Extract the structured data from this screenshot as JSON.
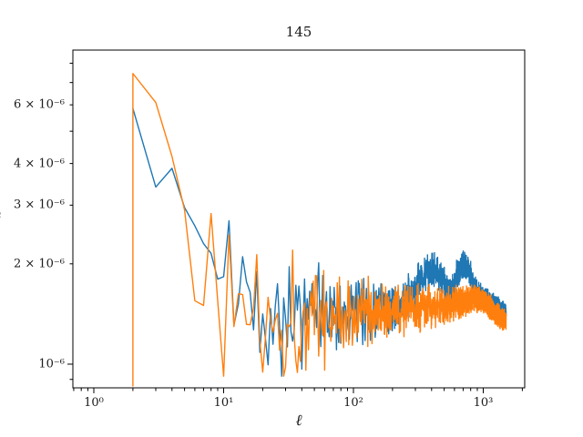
{
  "figure": {
    "title": "145",
    "xlabel": "ℓ",
    "y_axis_label_fragment": "ℓ",
    "background_color": "#ffffff",
    "spine_color": "#000000",
    "text_color": "#1a1a1a"
  },
  "chart_data": {
    "type": "line",
    "title": "145",
    "xlabel": "ℓ",
    "ylabel": "",
    "xscale": "log",
    "yscale": "log",
    "xlim": [
      0.6895,
      2086
    ],
    "ylim": [
      8.49e-07,
      8.76e-06
    ],
    "grid": false,
    "legend": null,
    "x_ticks": {
      "major": [
        {
          "v": 1,
          "label": "10⁰"
        },
        {
          "v": 10,
          "label": "10¹"
        },
        {
          "v": 100,
          "label": "10²"
        },
        {
          "v": 1000,
          "label": "10³"
        }
      ]
    },
    "y_ticks": {
      "major": [
        {
          "v": 1e-06,
          "label": "10⁻⁶"
        }
      ],
      "minor_labeled": [
        {
          "v": 2e-06,
          "label": "2 × 10⁻⁶"
        },
        {
          "v": 3e-06,
          "label": "3 × 10⁻⁶"
        },
        {
          "v": 4e-06,
          "label": "4 × 10⁻⁶"
        },
        {
          "v": 6e-06,
          "label": "6 × 10⁻⁶"
        }
      ]
    },
    "series": [
      {
        "name": "series-blue",
        "color": "#1f77b4",
        "linewidth": 1.4,
        "head": [
          [
            2,
            5.85e-06
          ],
          [
            3,
            3.4e-06
          ],
          [
            4,
            3.87e-06
          ],
          [
            5,
            2.95e-06
          ],
          [
            6,
            2.6e-06
          ],
          [
            7,
            2.3e-06
          ],
          [
            8,
            2.15e-06
          ],
          [
            9,
            1.8e-06
          ]
        ],
        "backbone": [
          [
            10,
            1.75e-06
          ],
          [
            14,
            1.62e-06
          ],
          [
            20,
            1.52e-06
          ],
          [
            30,
            1.45e-06
          ],
          [
            60,
            1.42e-06
          ],
          [
            100,
            1.44e-06
          ],
          [
            160,
            1.47e-06
          ],
          [
            220,
            1.5e-06
          ],
          [
            280,
            1.6e-06
          ],
          [
            330,
            1.8e-06
          ],
          [
            380,
            1.92e-06
          ],
          [
            430,
            1.9e-06
          ],
          [
            480,
            1.8e-06
          ],
          [
            530,
            1.65e-06
          ],
          [
            560,
            1.6e-06
          ],
          [
            620,
            1.85e-06
          ],
          [
            680,
            1.97e-06
          ],
          [
            740,
            1.97e-06
          ],
          [
            800,
            1.85e-06
          ],
          [
            860,
            1.7e-06
          ],
          [
            920,
            1.62e-06
          ],
          [
            1000,
            1.58e-06
          ],
          [
            1100,
            1.55e-06
          ],
          [
            1250,
            1.5e-06
          ],
          [
            1400,
            1.45e-06
          ],
          [
            1500,
            1.43e-06
          ]
        ],
        "noise": {
          "start": 10,
          "end": 1500,
          "k": 1.25,
          "seed": 42,
          "min": 9.2e-07,
          "max": 3e-06
        }
      },
      {
        "name": "series-orange",
        "color": "#ff7f0e",
        "linewidth": 1.4,
        "head": [
          [
            2,
            8.6e-07
          ],
          [
            2,
            7.45e-06
          ],
          [
            3,
            6.1e-06
          ],
          [
            4,
            4.2e-06
          ],
          [
            5,
            2.9e-06
          ],
          [
            6,
            1.55e-06
          ],
          [
            7,
            1.5e-06
          ],
          [
            8,
            2.83e-06
          ],
          [
            9,
            1.55e-06
          ]
        ],
        "backbone": [
          [
            10,
            1.6e-06
          ],
          [
            14,
            1.5e-06
          ],
          [
            20,
            1.45e-06
          ],
          [
            30,
            1.4e-06
          ],
          [
            60,
            1.4e-06
          ],
          [
            100,
            1.42e-06
          ],
          [
            200,
            1.45e-06
          ],
          [
            300,
            1.47e-06
          ],
          [
            400,
            1.48e-06
          ],
          [
            500,
            1.5e-06
          ],
          [
            600,
            1.52e-06
          ],
          [
            700,
            1.55e-06
          ],
          [
            800,
            1.57e-06
          ],
          [
            900,
            1.58e-06
          ],
          [
            1000,
            1.55e-06
          ],
          [
            1100,
            1.5e-06
          ],
          [
            1200,
            1.45e-06
          ],
          [
            1300,
            1.4e-06
          ],
          [
            1400,
            1.37e-06
          ],
          [
            1500,
            1.36e-06
          ]
        ],
        "noise": {
          "start": 10,
          "end": 1500,
          "k": 1.4,
          "seed": 1337,
          "min": 9.2e-07,
          "max": 3e-06
        }
      }
    ]
  }
}
